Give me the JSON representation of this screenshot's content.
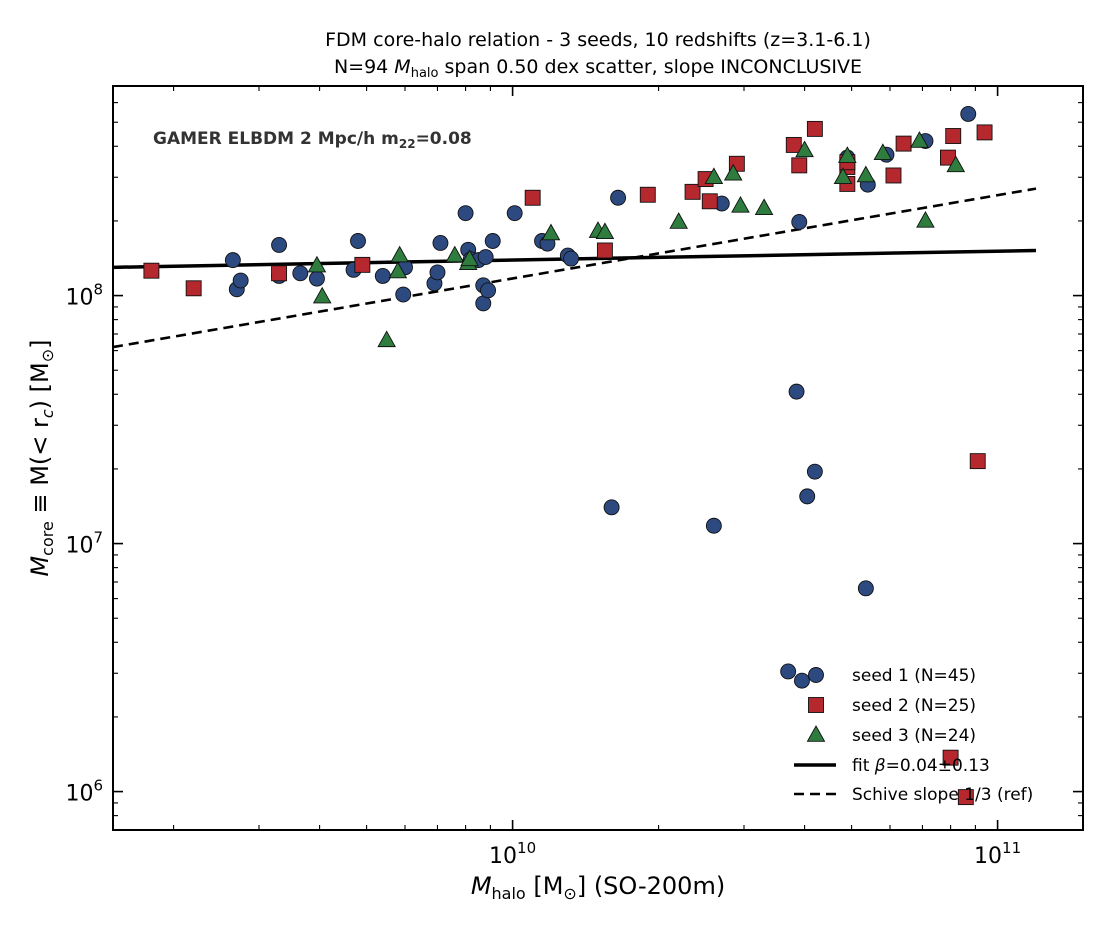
{
  "chart_data": {
    "type": "scatter",
    "title": "FDM core-halo relation  -  3 seeds, 10 redshifts (z=3.1-6.1)",
    "subtitle_prefix": "N=94  ",
    "subtitle_var": "M",
    "subtitle_sub": "halo",
    "subtitle_suffix": " span 0.50 dex scatter,  slope INCONCLUSIVE",
    "annotation_text": "GAMER ELBDM  2 Mpc/h  m",
    "annotation_sub": "22",
    "annotation_suffix": "=0.08",
    "xlabel_var": "M",
    "xlabel_sub": "halo",
    "xlabel_suffix": "  [M",
    "xlabel_end": "]   (SO-200m)",
    "ylabel_var": "M",
    "ylabel_sub": "core",
    "ylabel_suffix": " ≡ M(< r",
    "ylabel_rsub": "c",
    "ylabel_end": ")  [M",
    "ylabel_close": "]",
    "sun_symbol": "⊙",
    "xscale": "log",
    "yscale": "log",
    "xlim": [
      1500000000.0,
      150000000000.0
    ],
    "ylim": [
      700000.0,
      700000000.0
    ],
    "x_ticks": [
      {
        "value": 10000000000.0,
        "base": "10",
        "exp": "10"
      },
      {
        "value": 100000000000.0,
        "base": "10",
        "exp": "11"
      }
    ],
    "y_ticks": [
      {
        "value": 1000000.0,
        "base": "10",
        "exp": "6"
      },
      {
        "value": 10000000.0,
        "base": "10",
        "exp": "7"
      },
      {
        "value": 100000000.0,
        "base": "10",
        "exp": "8"
      }
    ],
    "grid": false,
    "legend_position": "bottom-right",
    "series": [
      {
        "name": "seed 1 (N=45)",
        "marker": "circle",
        "color": "#2d4a80",
        "points": [
          [
            2650000000.0,
            139000000.0
          ],
          [
            2700000000.0,
            106000000.0
          ],
          [
            2750000000.0,
            115000000.0
          ],
          [
            3300000000.0,
            160000000.0
          ],
          [
            3300000000.0,
            120000000.0
          ],
          [
            3650000000.0,
            123000000.0
          ],
          [
            3950000000.0,
            117000000.0
          ],
          [
            4700000000.0,
            127000000.0
          ],
          [
            4800000000.0,
            166000000.0
          ],
          [
            5400000000.0,
            120000000.0
          ],
          [
            5950000000.0,
            101000000.0
          ],
          [
            6000000000.0,
            130000000.0
          ],
          [
            6900000000.0,
            112000000.0
          ],
          [
            7000000000.0,
            124000000.0
          ],
          [
            7100000000.0,
            163000000.0
          ],
          [
            8000000000.0,
            215000000.0
          ],
          [
            8100000000.0,
            153000000.0
          ],
          [
            8200000000.0,
            140000000.0
          ],
          [
            8500000000.0,
            139000000.0
          ],
          [
            8700000000.0,
            110000000.0
          ],
          [
            8700000000.0,
            93000000.0
          ],
          [
            8800000000.0,
            143000000.0
          ],
          [
            8900000000.0,
            105000000.0
          ],
          [
            9100000000.0,
            166000000.0
          ],
          [
            10100000000.0,
            215000000.0
          ],
          [
            11500000000.0,
            166000000.0
          ],
          [
            11800000000.0,
            162000000.0
          ],
          [
            13000000000.0,
            145000000.0
          ],
          [
            13200000000.0,
            141000000.0
          ],
          [
            16500000000.0,
            248000000.0
          ],
          [
            27000000000.0,
            235000000.0
          ],
          [
            39000000000.0,
            198000000.0
          ],
          [
            49000000000.0,
            360000000.0
          ],
          [
            54000000000.0,
            280000000.0
          ],
          [
            59000000000.0,
            370000000.0
          ],
          [
            71000000000.0,
            420000000.0
          ],
          [
            87000000000.0,
            540000000.0
          ],
          [
            16000000000.0,
            14000000.0
          ],
          [
            26000000000.0,
            11800000.0
          ],
          [
            38500000000.0,
            41000000.0
          ],
          [
            40500000000.0,
            15500000.0
          ],
          [
            42000000000.0,
            19500000.0
          ],
          [
            53500000000.0,
            6600000.0
          ],
          [
            37000000000.0,
            3050000.0
          ],
          [
            39500000000.0,
            2800000.0
          ]
        ]
      },
      {
        "name": "seed 2 (N=25)",
        "marker": "square",
        "color": "#b5282e",
        "points": [
          [
            1800000000.0,
            126000000.0
          ],
          [
            2200000000.0,
            107000000.0
          ],
          [
            3300000000.0,
            123000000.0
          ],
          [
            4900000000.0,
            133000000.0
          ],
          [
            11000000000.0,
            248000000.0
          ],
          [
            15500000000.0,
            152000000.0
          ],
          [
            19000000000.0,
            255000000.0
          ],
          [
            23500000000.0,
            262000000.0
          ],
          [
            25000000000.0,
            295000000.0
          ],
          [
            25500000000.0,
            240000000.0
          ],
          [
            29000000000.0,
            340000000.0
          ],
          [
            38000000000.0,
            405000000.0
          ],
          [
            39000000000.0,
            335000000.0
          ],
          [
            42000000000.0,
            470000000.0
          ],
          [
            49000000000.0,
            330000000.0
          ],
          [
            49000000000.0,
            282000000.0
          ],
          [
            61000000000.0,
            305000000.0
          ],
          [
            64000000000.0,
            410000000.0
          ],
          [
            79000000000.0,
            360000000.0
          ],
          [
            81000000000.0,
            440000000.0
          ],
          [
            94000000000.0,
            455000000.0
          ],
          [
            91000000000.0,
            21500000.0
          ],
          [
            80000000000.0,
            1370000.0
          ],
          [
            86000000000.0,
            950000.0
          ],
          [
            49000000000.0,
            345000000.0
          ]
        ]
      },
      {
        "name": "seed 3 (N=24)",
        "marker": "triangle",
        "color": "#2e7d3e",
        "points": [
          [
            3950000000.0,
            132000000.0
          ],
          [
            4050000000.0,
            99000000.0
          ],
          [
            5500000000.0,
            66000000.0
          ],
          [
            5800000000.0,
            125000000.0
          ],
          [
            5850000000.0,
            145000000.0
          ],
          [
            7600000000.0,
            145000000.0
          ],
          [
            8100000000.0,
            135000000.0
          ],
          [
            8150000000.0,
            140000000.0
          ],
          [
            12000000000.0,
            178000000.0
          ],
          [
            15000000000.0,
            182000000.0
          ],
          [
            15500000000.0,
            180000000.0
          ],
          [
            22000000000.0,
            198000000.0
          ],
          [
            26000000000.0,
            300000000.0
          ],
          [
            28500000000.0,
            310000000.0
          ],
          [
            29500000000.0,
            230000000.0
          ],
          [
            33000000000.0,
            225000000.0
          ],
          [
            40000000000.0,
            385000000.0
          ],
          [
            48000000000.0,
            300000000.0
          ],
          [
            49000000000.0,
            365000000.0
          ],
          [
            53500000000.0,
            305000000.0
          ],
          [
            58000000000.0,
            375000000.0
          ],
          [
            69000000000.0,
            420000000.0
          ],
          [
            71000000000.0,
            200000000.0
          ],
          [
            82000000000.0,
            335000000.0
          ]
        ]
      }
    ],
    "lines": [
      {
        "name_prefix": "fit ",
        "name_greek": "β",
        "name_suffix": "=0.04±0.13",
        "style": "solid",
        "x": [
          1500000000.0,
          120000000000.0
        ],
        "y": [
          130000000.0,
          152000000.0
        ]
      },
      {
        "name": "Schive slope 1/3 (ref)",
        "style": "dashed",
        "x": [
          1500000000.0,
          120000000000.0
        ],
        "y": [
          62000000.0,
          270000000.0
        ]
      }
    ]
  }
}
